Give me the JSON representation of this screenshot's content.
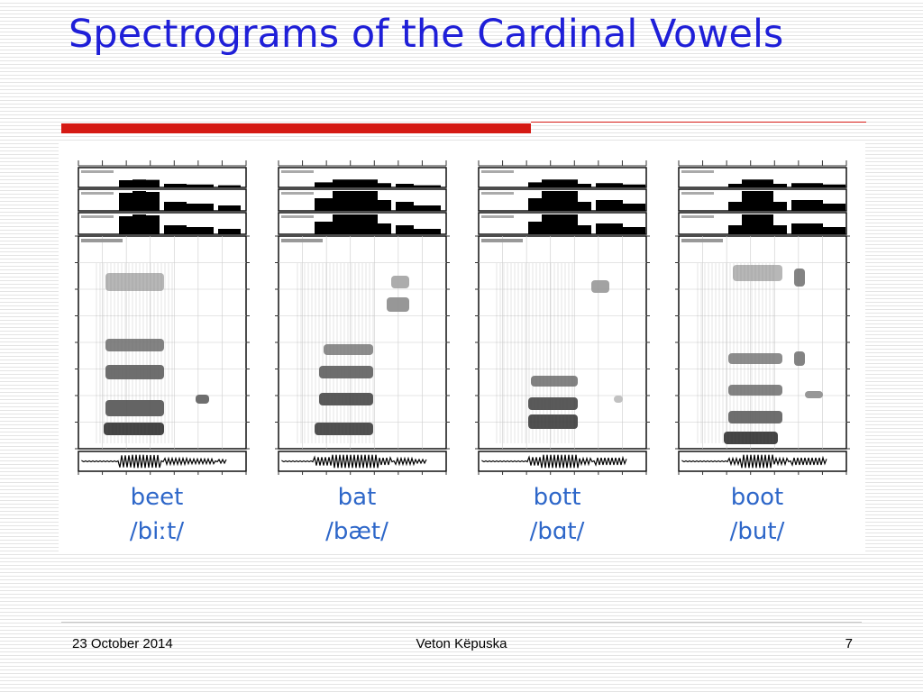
{
  "slide": {
    "title": "Spectrograms of the Cardinal Vowels",
    "footer": {
      "date": "23 October 2014",
      "author": "Veton Këpuska",
      "page": "7"
    }
  },
  "panels": [
    {
      "word": "beet",
      "ipa": "/biːt/"
    },
    {
      "word": "bat",
      "ipa": "/bæt/"
    },
    {
      "word": "bott",
      "ipa": "/bɑt/"
    },
    {
      "word": "boot",
      "ipa": "/but/"
    }
  ],
  "colors": {
    "title": "#1f1fd8",
    "accent_red": "#d51a14",
    "label_blue": "#2e67c9"
  }
}
